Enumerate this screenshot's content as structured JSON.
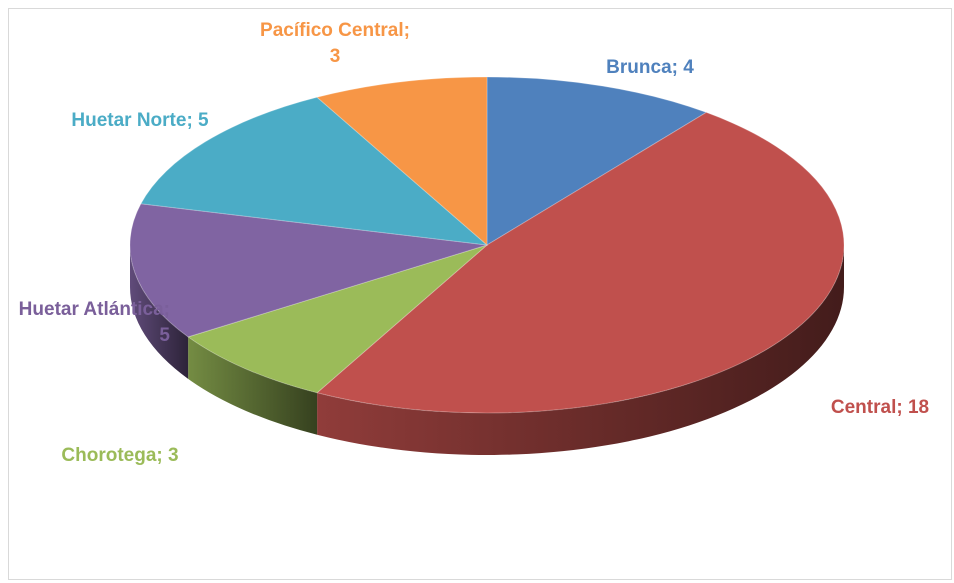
{
  "chart_data": {
    "type": "pie3d",
    "values": [
      4,
      18,
      3,
      5,
      5,
      3
    ],
    "value_labels": [
      "Brunca; 4",
      "Central; 18",
      "Chorotega; 3",
      "Huetar Atlántica; 5",
      "Huetar Norte; 5",
      "Pacífico Central; 3"
    ],
    "colors": [
      "#4f81bd",
      "#c0504d",
      "#9bbb59",
      "#8064a2",
      "#4bacc6",
      "#f79646"
    ]
  }
}
